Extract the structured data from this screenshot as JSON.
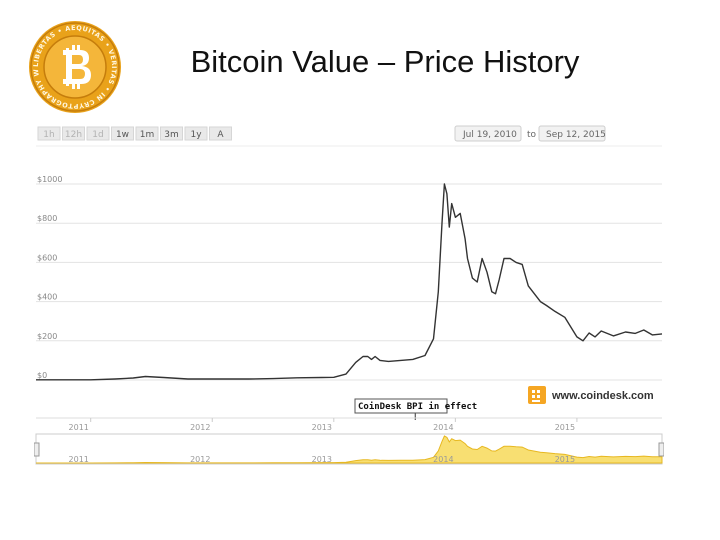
{
  "slide": {
    "title": "Bitcoin Value – Price History",
    "logo": {
      "icon": "bitcoin-coin-icon",
      "ring_text": "LIBERTAS • AEQUITAS • VERITAS • IN CRYPTOGRAPHY WE TRUST",
      "gold": "#e9a21a",
      "gold_dark": "#b8720a"
    }
  },
  "toolbar": {
    "zoom_buttons": [
      "1h",
      "12h",
      "1d",
      "1w",
      "1m",
      "3m",
      "1y",
      "A"
    ],
    "disabled_buttons": [
      "1h",
      "12h",
      "1d"
    ],
    "from_date": "Jul 19, 2010",
    "to_label": "to",
    "to_date": "Sep 12, 2015"
  },
  "brand": {
    "name": "www.coindesk.com",
    "icon": "coindesk-logo-icon",
    "color": "#f5a623"
  },
  "annotation": {
    "label": "CoinDesk BPI in effect",
    "year": 2013.67
  },
  "chart_data": {
    "type": "line",
    "title": "",
    "xlabel": "",
    "ylabel": "",
    "y_tick_labels": [
      "$0",
      "$200",
      "$400",
      "$600",
      "$800",
      "$1000"
    ],
    "ylim": [
      0,
      1000
    ],
    "xlim": [
      2010.55,
      2015.7
    ],
    "grid": true,
    "line_color": "#333333",
    "navigator": {
      "tick_labels": [
        "2011",
        "2012",
        "2013",
        "2014",
        "2015"
      ],
      "fill_color": "#f8df72",
      "line_color": "#e7b821"
    },
    "series": [
      {
        "x": [
          2010.55,
          2010.8,
          2011.0,
          2011.2,
          2011.35,
          2011.45,
          2011.6,
          2011.8,
          2012.0,
          2012.3,
          2012.5,
          2012.7,
          2012.9,
          2013.0,
          2013.1,
          2013.18,
          2013.24,
          2013.28,
          2013.31,
          2013.34,
          2013.38,
          2013.45,
          2013.55,
          2013.65,
          2013.75,
          2013.82,
          2013.86,
          2013.89,
          2013.91,
          2013.93,
          2013.95,
          2013.97,
          2014.0,
          2014.04,
          2014.08,
          2014.1,
          2014.14,
          2014.18,
          2014.22,
          2014.26,
          2014.3,
          2014.33,
          2014.36,
          2014.4,
          2014.45,
          2014.5,
          2014.55,
          2014.6,
          2014.65,
          2014.7,
          2014.75,
          2014.82,
          2014.9,
          2015.0,
          2015.05,
          2015.1,
          2015.15,
          2015.2,
          2015.3,
          2015.4,
          2015.48,
          2015.55,
          2015.62,
          2015.7
        ],
        "y": [
          1,
          1,
          1,
          5,
          10,
          18,
          13,
          5,
          5,
          5,
          7,
          11,
          13,
          14,
          30,
          90,
          120,
          120,
          105,
          120,
          100,
          95,
          100,
          105,
          125,
          210,
          450,
          800,
          1000,
          950,
          780,
          900,
          830,
          850,
          720,
          620,
          520,
          500,
          620,
          550,
          450,
          440,
          510,
          620,
          620,
          600,
          590,
          480,
          440,
          400,
          380,
          350,
          320,
          220,
          200,
          240,
          220,
          250,
          225,
          245,
          238,
          255,
          230,
          235
        ]
      }
    ]
  }
}
